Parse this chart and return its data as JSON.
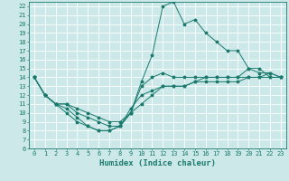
{
  "title": "",
  "xlabel": "Humidex (Indice chaleur)",
  "background_color": "#cce8e8",
  "grid_color": "#ffffff",
  "line_color": "#1a7a6e",
  "xlim": [
    -0.5,
    23.5
  ],
  "ylim": [
    6,
    22.5
  ],
  "xticks": [
    0,
    1,
    2,
    3,
    4,
    5,
    6,
    7,
    8,
    9,
    10,
    11,
    12,
    13,
    14,
    15,
    16,
    17,
    18,
    19,
    20,
    21,
    22,
    23
  ],
  "yticks": [
    6,
    7,
    8,
    9,
    10,
    11,
    12,
    13,
    14,
    15,
    16,
    17,
    18,
    19,
    20,
    21,
    22
  ],
  "line1_x": [
    0,
    1,
    2,
    3,
    4,
    5,
    6,
    7,
    8,
    9,
    10,
    11,
    12,
    13,
    14,
    15,
    16,
    17,
    18,
    19,
    20,
    21,
    22,
    23
  ],
  "line1_y": [
    14,
    12,
    11,
    10,
    9,
    8.5,
    8,
    8,
    8.5,
    10,
    13.5,
    16.5,
    22,
    22.5,
    20,
    20.5,
    19,
    18,
    17,
    17,
    15,
    15,
    14,
    14
  ],
  "line2_x": [
    0,
    1,
    2,
    3,
    4,
    5,
    6,
    7,
    8,
    9,
    10,
    11,
    12,
    13,
    14,
    15,
    16,
    17,
    18,
    19,
    20,
    21,
    22,
    23
  ],
  "line2_y": [
    14,
    12,
    11,
    10.5,
    9.5,
    8.5,
    8,
    8,
    8.5,
    10,
    13,
    14,
    14.5,
    14,
    14,
    14,
    14,
    14,
    14,
    14,
    15,
    14.5,
    14.5,
    14
  ],
  "line3_x": [
    0,
    1,
    2,
    3,
    4,
    5,
    6,
    7,
    8,
    9,
    10,
    11,
    12,
    13,
    14,
    15,
    16,
    17,
    18,
    19,
    20,
    21,
    22,
    23
  ],
  "line3_y": [
    14,
    12,
    11,
    11,
    10,
    9.5,
    9,
    8.5,
    8.5,
    10.5,
    12,
    12.5,
    13,
    13,
    13,
    13.5,
    14,
    14,
    14,
    14,
    14,
    14,
    14.5,
    14
  ],
  "line4_x": [
    0,
    1,
    2,
    3,
    4,
    5,
    6,
    7,
    8,
    9,
    10,
    11,
    12,
    13,
    14,
    15,
    16,
    17,
    18,
    19,
    20,
    21,
    22,
    23
  ],
  "line4_y": [
    14,
    12,
    11,
    11,
    10.5,
    10,
    9.5,
    9,
    9,
    10,
    11,
    12,
    13,
    13,
    13,
    13.5,
    13.5,
    13.5,
    13.5,
    13.5,
    14,
    14,
    14,
    14
  ],
  "tick_fontsize": 5,
  "xlabel_fontsize": 6.5,
  "linewidth": 0.7,
  "markersize": 2.5
}
